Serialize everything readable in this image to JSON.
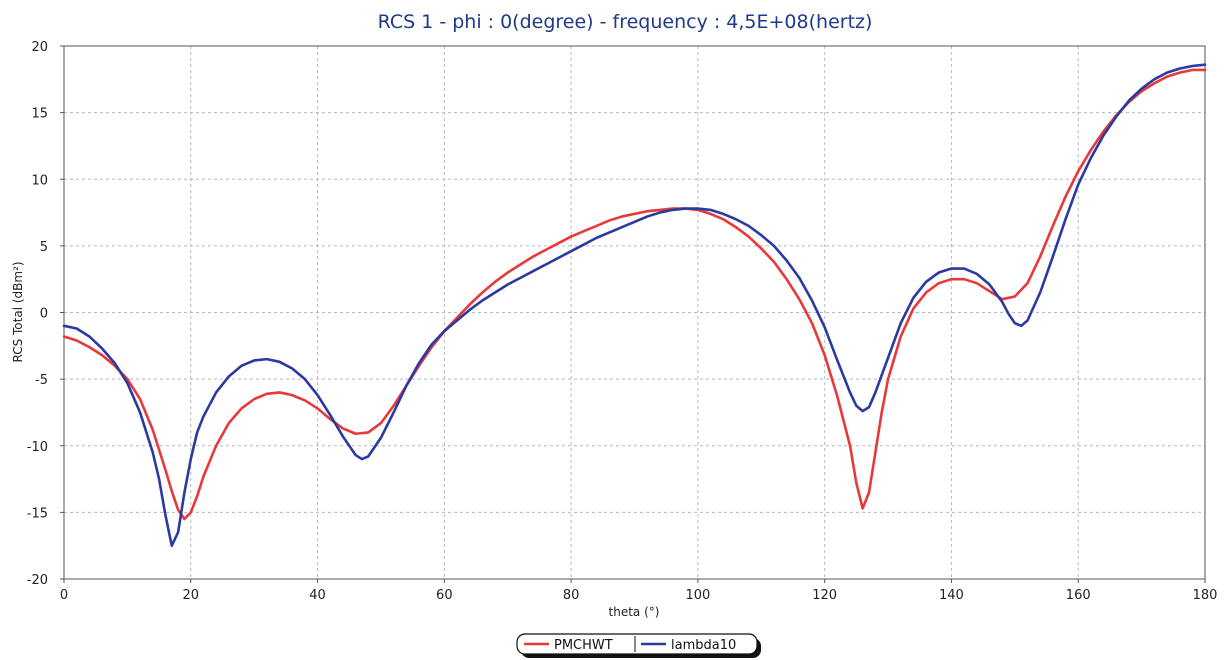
{
  "chart_data": {
    "type": "line",
    "title": "RCS 1 - phi : 0(degree) - frequency : 4,5E+08(hertz)",
    "xlabel": "theta (°)",
    "ylabel": "RCS Total (dBm²)",
    "xlim": [
      0,
      180
    ],
    "ylim": [
      -20,
      20
    ],
    "xticks": [
      "0",
      "20",
      "40",
      "60",
      "80",
      "100",
      "120",
      "140",
      "160",
      "180"
    ],
    "yticks": [
      "-20",
      "-15",
      "-10",
      "-5",
      "0",
      "5",
      "10",
      "15",
      "20"
    ],
    "grid": true,
    "legend_position": "bottom-center",
    "series": [
      {
        "name": "PMCHWT",
        "color": "#e8393a",
        "points": [
          [
            0,
            -1.8
          ],
          [
            2,
            -2.1
          ],
          [
            4,
            -2.6
          ],
          [
            6,
            -3.2
          ],
          [
            8,
            -4.0
          ],
          [
            10,
            -5.0
          ],
          [
            12,
            -6.5
          ],
          [
            14,
            -8.8
          ],
          [
            16,
            -11.8
          ],
          [
            17,
            -13.4
          ],
          [
            18,
            -14.8
          ],
          [
            19,
            -15.5
          ],
          [
            20,
            -15.0
          ],
          [
            21,
            -13.8
          ],
          [
            22,
            -12.3
          ],
          [
            24,
            -10.0
          ],
          [
            26,
            -8.3
          ],
          [
            28,
            -7.2
          ],
          [
            30,
            -6.5
          ],
          [
            32,
            -6.1
          ],
          [
            34,
            -6.0
          ],
          [
            36,
            -6.2
          ],
          [
            38,
            -6.6
          ],
          [
            40,
            -7.2
          ],
          [
            42,
            -8.0
          ],
          [
            44,
            -8.7
          ],
          [
            46,
            -9.1
          ],
          [
            48,
            -9.0
          ],
          [
            50,
            -8.3
          ],
          [
            52,
            -7.0
          ],
          [
            54,
            -5.5
          ],
          [
            56,
            -4.0
          ],
          [
            58,
            -2.6
          ],
          [
            60,
            -1.4
          ],
          [
            62,
            -0.4
          ],
          [
            64,
            0.6
          ],
          [
            66,
            1.5
          ],
          [
            68,
            2.3
          ],
          [
            70,
            3.0
          ],
          [
            72,
            3.6
          ],
          [
            74,
            4.2
          ],
          [
            76,
            4.7
          ],
          [
            78,
            5.2
          ],
          [
            80,
            5.7
          ],
          [
            82,
            6.1
          ],
          [
            84,
            6.5
          ],
          [
            86,
            6.9
          ],
          [
            88,
            7.2
          ],
          [
            90,
            7.4
          ],
          [
            92,
            7.6
          ],
          [
            94,
            7.7
          ],
          [
            96,
            7.8
          ],
          [
            98,
            7.8
          ],
          [
            100,
            7.7
          ],
          [
            102,
            7.4
          ],
          [
            104,
            7.0
          ],
          [
            106,
            6.4
          ],
          [
            108,
            5.7
          ],
          [
            110,
            4.8
          ],
          [
            112,
            3.8
          ],
          [
            114,
            2.5
          ],
          [
            116,
            1.0
          ],
          [
            118,
            -0.8
          ],
          [
            120,
            -3.2
          ],
          [
            122,
            -6.3
          ],
          [
            124,
            -10.0
          ],
          [
            125,
            -12.8
          ],
          [
            126,
            -14.7
          ],
          [
            127,
            -13.5
          ],
          [
            128,
            -10.5
          ],
          [
            129,
            -7.5
          ],
          [
            130,
            -5.0
          ],
          [
            132,
            -1.8
          ],
          [
            134,
            0.3
          ],
          [
            136,
            1.5
          ],
          [
            138,
            2.2
          ],
          [
            140,
            2.5
          ],
          [
            142,
            2.5
          ],
          [
            144,
            2.2
          ],
          [
            146,
            1.6
          ],
          [
            148,
            1.0
          ],
          [
            150,
            1.2
          ],
          [
            152,
            2.2
          ],
          [
            154,
            4.2
          ],
          [
            156,
            6.5
          ],
          [
            158,
            8.7
          ],
          [
            160,
            10.6
          ],
          [
            162,
            12.2
          ],
          [
            164,
            13.6
          ],
          [
            166,
            14.8
          ],
          [
            168,
            15.8
          ],
          [
            170,
            16.6
          ],
          [
            172,
            17.2
          ],
          [
            174,
            17.7
          ],
          [
            176,
            18.0
          ],
          [
            178,
            18.2
          ],
          [
            180,
            18.2
          ]
        ]
      },
      {
        "name": "lambda10",
        "color": "#2b3aa0",
        "points": [
          [
            0,
            -1.0
          ],
          [
            2,
            -1.2
          ],
          [
            4,
            -1.8
          ],
          [
            6,
            -2.7
          ],
          [
            8,
            -3.8
          ],
          [
            10,
            -5.3
          ],
          [
            12,
            -7.5
          ],
          [
            14,
            -10.5
          ],
          [
            15,
            -12.5
          ],
          [
            16,
            -15.2
          ],
          [
            17,
            -17.5
          ],
          [
            18,
            -16.5
          ],
          [
            19,
            -13.5
          ],
          [
            20,
            -11.0
          ],
          [
            21,
            -9.0
          ],
          [
            22,
            -7.8
          ],
          [
            24,
            -6.0
          ],
          [
            26,
            -4.8
          ],
          [
            28,
            -4.0
          ],
          [
            30,
            -3.6
          ],
          [
            32,
            -3.5
          ],
          [
            34,
            -3.7
          ],
          [
            36,
            -4.2
          ],
          [
            38,
            -5.0
          ],
          [
            40,
            -6.2
          ],
          [
            42,
            -7.7
          ],
          [
            44,
            -9.3
          ],
          [
            46,
            -10.7
          ],
          [
            47,
            -11.0
          ],
          [
            48,
            -10.8
          ],
          [
            50,
            -9.4
          ],
          [
            52,
            -7.5
          ],
          [
            54,
            -5.5
          ],
          [
            56,
            -3.8
          ],
          [
            58,
            -2.4
          ],
          [
            60,
            -1.4
          ],
          [
            62,
            -0.6
          ],
          [
            64,
            0.2
          ],
          [
            66,
            0.9
          ],
          [
            68,
            1.5
          ],
          [
            70,
            2.1
          ],
          [
            72,
            2.6
          ],
          [
            74,
            3.1
          ],
          [
            76,
            3.6
          ],
          [
            78,
            4.1
          ],
          [
            80,
            4.6
          ],
          [
            82,
            5.1
          ],
          [
            84,
            5.6
          ],
          [
            86,
            6.0
          ],
          [
            88,
            6.4
          ],
          [
            90,
            6.8
          ],
          [
            92,
            7.2
          ],
          [
            94,
            7.5
          ],
          [
            96,
            7.7
          ],
          [
            98,
            7.8
          ],
          [
            100,
            7.8
          ],
          [
            102,
            7.7
          ],
          [
            104,
            7.4
          ],
          [
            106,
            7.0
          ],
          [
            108,
            6.5
          ],
          [
            110,
            5.8
          ],
          [
            112,
            5.0
          ],
          [
            114,
            3.9
          ],
          [
            116,
            2.6
          ],
          [
            118,
            0.9
          ],
          [
            120,
            -1.1
          ],
          [
            122,
            -3.6
          ],
          [
            124,
            -6.0
          ],
          [
            125,
            -7.0
          ],
          [
            126,
            -7.4
          ],
          [
            127,
            -7.1
          ],
          [
            128,
            -6.0
          ],
          [
            130,
            -3.4
          ],
          [
            132,
            -0.8
          ],
          [
            134,
            1.1
          ],
          [
            136,
            2.3
          ],
          [
            138,
            3.0
          ],
          [
            140,
            3.3
          ],
          [
            142,
            3.3
          ],
          [
            144,
            2.9
          ],
          [
            146,
            2.1
          ],
          [
            148,
            0.8
          ],
          [
            149,
            -0.1
          ],
          [
            150,
            -0.8
          ],
          [
            151,
            -1.0
          ],
          [
            152,
            -0.6
          ],
          [
            154,
            1.5
          ],
          [
            156,
            4.2
          ],
          [
            158,
            7.0
          ],
          [
            160,
            9.6
          ],
          [
            162,
            11.6
          ],
          [
            164,
            13.3
          ],
          [
            166,
            14.7
          ],
          [
            168,
            15.9
          ],
          [
            170,
            16.8
          ],
          [
            172,
            17.5
          ],
          [
            174,
            18.0
          ],
          [
            176,
            18.3
          ],
          [
            178,
            18.5
          ],
          [
            180,
            18.6
          ]
        ]
      }
    ]
  }
}
